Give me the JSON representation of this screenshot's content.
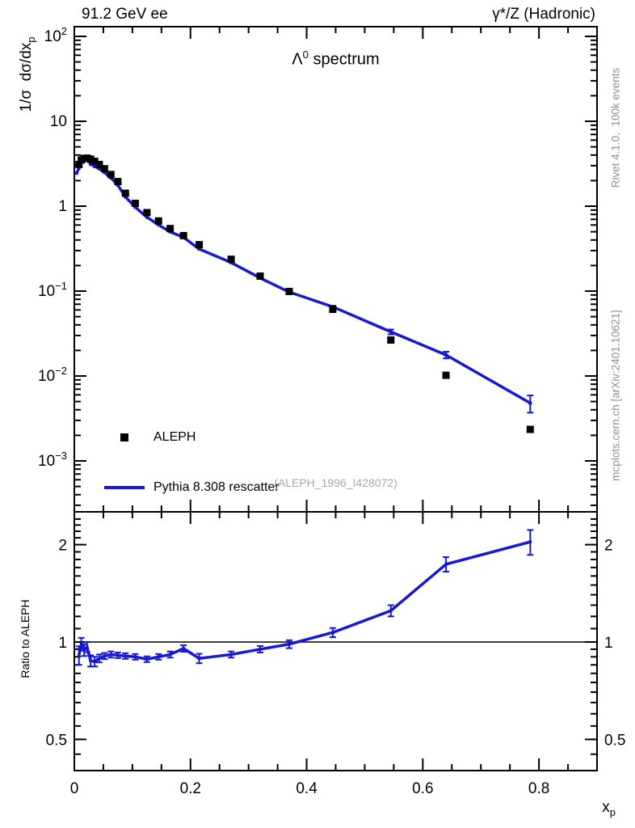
{
  "header": {
    "left": "91.2 GeV ee",
    "right": "γ*/Z (Hadronic)"
  },
  "title": {
    "base": "Λ",
    "sup": "0",
    "rest": " spectrum"
  },
  "axis_labels": {
    "y_main": "1/σ  dσ/dx",
    "y_main_sub": "p",
    "y_ratio": "Ratio to ALEPH",
    "x": "x",
    "x_sub": "p"
  },
  "legend": {
    "items": [
      {
        "label": "ALEPH",
        "swatch": "square-marker"
      },
      {
        "label": "Pythia 8.308 rescatter",
        "swatch": "line"
      }
    ]
  },
  "watermark": "(ALEPH_1996_I428072)",
  "side_notes": {
    "top": "Rivet 4.1.0,  100k events",
    "bottom": "mcplots.cern.ch [arXiv:2401.10621]"
  },
  "colors": {
    "mc": "#1717d6",
    "data": "#000000",
    "frame": "#000000",
    "gray_text": "#909090",
    "watermark": "#a8a8a8"
  },
  "chart_data": [
    {
      "type": "scatter",
      "panel": "main",
      "title": "Λ⁰ spectrum",
      "xlabel": "x_p",
      "ylabel": "1/σ dσ/dx_p",
      "xlim": [
        0,
        0.9
      ],
      "ylim": [
        0.00022,
        130
      ],
      "yscale": "log",
      "yticks": [
        {
          "v": 100,
          "m": "10",
          "e": "2"
        },
        {
          "v": 10,
          "m": "10"
        },
        {
          "v": 1,
          "m": "1"
        },
        {
          "v": 0.1,
          "m": "10",
          "e": "−1"
        },
        {
          "v": 0.01,
          "m": "10",
          "e": "−2"
        },
        {
          "v": 0.001,
          "m": "10",
          "e": "−3"
        }
      ],
      "xticks": [
        {
          "v": 0,
          "label": "0"
        },
        {
          "v": 0.2,
          "label": "0.2"
        },
        {
          "v": 0.4,
          "label": "0.4"
        },
        {
          "v": 0.6,
          "label": "0.6"
        },
        {
          "v": 0.8,
          "label": "0.8"
        }
      ],
      "x_minor_step": 0.05,
      "series": [
        {
          "name": "ALEPH",
          "style": "markers",
          "marker": "filled-square",
          "color": "#000000",
          "x": [
            0.008,
            0.012,
            0.017,
            0.022,
            0.028,
            0.035,
            0.043,
            0.052,
            0.063,
            0.075,
            0.088,
            0.105,
            0.125,
            0.145,
            0.165,
            0.188,
            0.215,
            0.27,
            0.32,
            0.37,
            0.445,
            0.545,
            0.64,
            0.785
          ],
          "y": [
            3.1,
            3.5,
            3.65,
            3.68,
            3.58,
            3.38,
            3.1,
            2.76,
            2.36,
            1.95,
            1.42,
            1.08,
            0.84,
            0.67,
            0.545,
            0.45,
            0.352,
            0.237,
            0.15,
            0.099,
            0.061,
            0.0265,
            0.0102,
            0.00235
          ]
        },
        {
          "name": "Pythia 8.308 rescatter",
          "style": "line+markers",
          "color": "#1717d6",
          "x": [
            0.004,
            0.008,
            0.012,
            0.017,
            0.022,
            0.028,
            0.035,
            0.043,
            0.052,
            0.063,
            0.075,
            0.088,
            0.105,
            0.125,
            0.145,
            0.165,
            0.188,
            0.215,
            0.27,
            0.32,
            0.37,
            0.445,
            0.545,
            0.64,
            0.785
          ],
          "y": [
            2.45,
            2.82,
            3.45,
            3.45,
            3.55,
            3.13,
            2.94,
            2.76,
            2.5,
            2.16,
            1.77,
            1.285,
            0.972,
            0.743,
            0.603,
            0.499,
            0.43,
            0.313,
            0.217,
            0.1425,
            0.0975,
            0.0653,
            0.0331,
            0.0177,
            0.0048
          ],
          "yerr": [
            0,
            0,
            0,
            0,
            0,
            0,
            0,
            0,
            0,
            0,
            0,
            0,
            0,
            0,
            0,
            0,
            0,
            0,
            0,
            0,
            0,
            0.002,
            0.0022,
            0.0016,
            0.0011
          ]
        }
      ]
    },
    {
      "type": "line",
      "panel": "ratio",
      "ylabel": "Ratio to ALEPH",
      "xlabel": "x_p",
      "xlim": [
        0,
        0.9
      ],
      "ylim": [
        0.39,
        2.56
      ],
      "yscale": "log",
      "refline": 1,
      "yticks": [
        {
          "v": 2,
          "label": "2"
        },
        {
          "v": 1,
          "label": "1"
        },
        {
          "v": 0.5,
          "label": "0.5"
        }
      ],
      "series": [
        {
          "name": "Pythia 8.308 rescatter / ALEPH",
          "style": "line+markers+errorbars",
          "color": "#1717d6",
          "x": [
            0.008,
            0.012,
            0.017,
            0.022,
            0.028,
            0.035,
            0.043,
            0.052,
            0.063,
            0.075,
            0.088,
            0.105,
            0.125,
            0.145,
            0.165,
            0.188,
            0.215,
            0.27,
            0.32,
            0.37,
            0.445,
            0.545,
            0.64,
            0.785
          ],
          "y": [
            0.91,
            0.985,
            0.945,
            0.965,
            0.875,
            0.87,
            0.89,
            0.905,
            0.915,
            0.91,
            0.905,
            0.9,
            0.885,
            0.9,
            0.915,
            0.955,
            0.89,
            0.915,
            0.95,
            0.985,
            1.07,
            1.25,
            1.74,
            2.04
          ],
          "yerr": [
            0.06,
            0.045,
            0.04,
            0.035,
            0.035,
            0.03,
            0.025,
            0.02,
            0.02,
            0.018,
            0.018,
            0.018,
            0.018,
            0.018,
            0.02,
            0.022,
            0.03,
            0.02,
            0.022,
            0.028,
            0.035,
            0.05,
            0.09,
            0.18
          ]
        }
      ]
    }
  ]
}
